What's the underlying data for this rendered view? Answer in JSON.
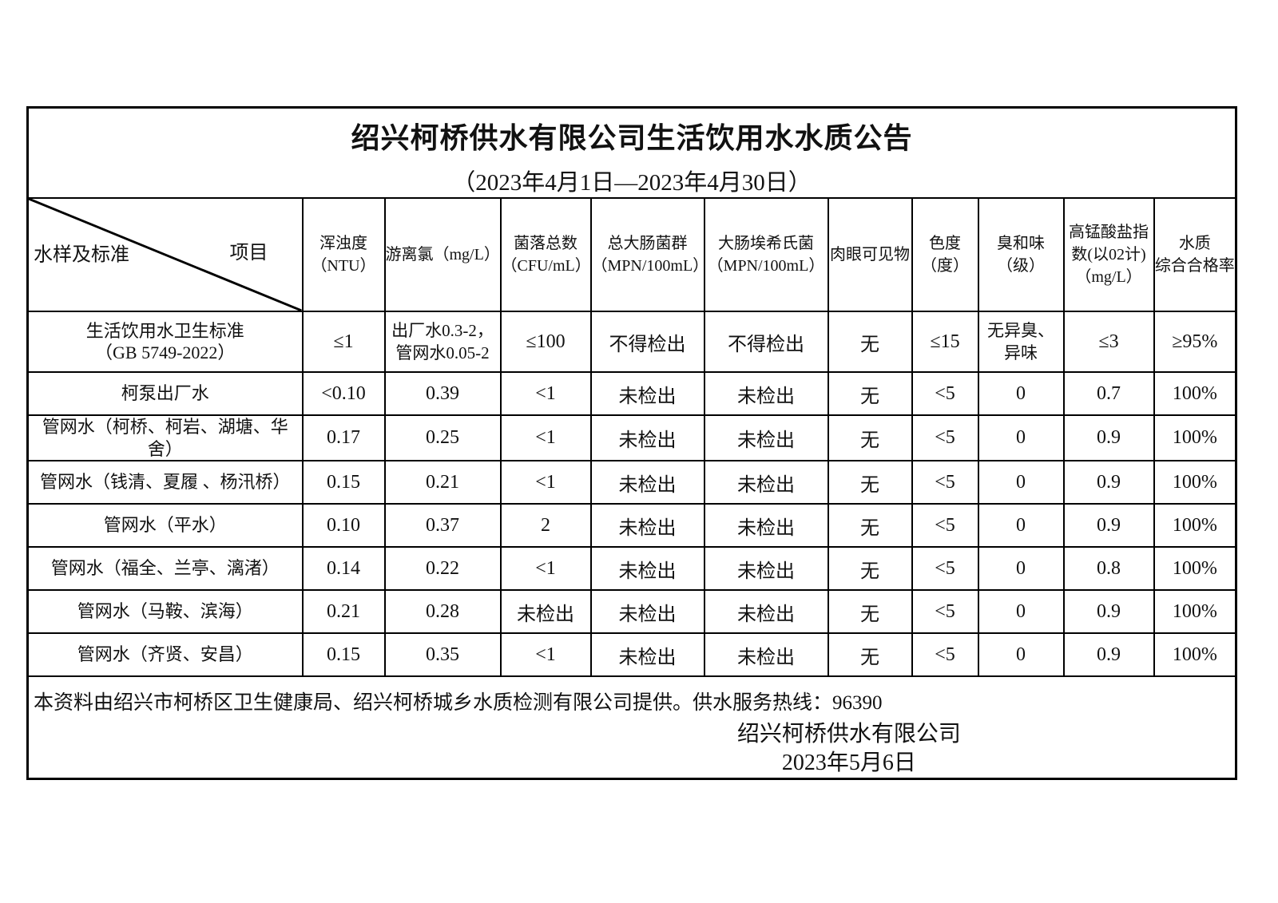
{
  "title": "绍兴柯桥供水有限公司生活饮用水水质公告",
  "subtitle": "（2023年4月1日—2023年4月30日）",
  "corner": {
    "left": "水样及标准",
    "right": "项目"
  },
  "columns": [
    "浑浊度\n（NTU）",
    "游离氯（mg/L）",
    "菌落总数\n（CFU/mL）",
    "总大肠菌群\n（MPN/100mL）",
    "大肠埃希氏菌\n（MPN/100mL）",
    "肉眼可见物",
    "色度\n（度）",
    "臭和味\n（级）",
    "高锰酸盐指\n数(以02计)\n（mg/L）",
    "水质\n综合合格率"
  ],
  "rows": [
    {
      "name": "生活饮用水卫生标准\n（GB 5749-2022）",
      "values": [
        "≤1",
        "出厂水0.3-2，\n管网水0.05-2",
        "≤100",
        "不得检出",
        "不得检出",
        "无",
        "≤15",
        "无异臭、\n异味",
        "≤3",
        "≥95%"
      ]
    },
    {
      "name": "柯泵出厂水",
      "values": [
        "<0.10",
        "0.39",
        "<1",
        "未检出",
        "未检出",
        "无",
        "<5",
        "0",
        "0.7",
        "100%"
      ]
    },
    {
      "name": "管网水（柯桥、柯岩、湖塘、华\n舍）",
      "values": [
        "0.17",
        "0.25",
        "<1",
        "未检出",
        "未检出",
        "无",
        "<5",
        "0",
        "0.9",
        "100%"
      ]
    },
    {
      "name": "管网水（钱清、夏履 、杨汛桥）",
      "values": [
        "0.15",
        "0.21",
        "<1",
        "未检出",
        "未检出",
        "无",
        "<5",
        "0",
        "0.9",
        "100%"
      ]
    },
    {
      "name": "管网水（平水）",
      "values": [
        "0.10",
        "0.37",
        "2",
        "未检出",
        "未检出",
        "无",
        "<5",
        "0",
        "0.9",
        "100%"
      ]
    },
    {
      "name": "管网水（福全、兰亭、漓渚）",
      "values": [
        "0.14",
        "0.22",
        "<1",
        "未检出",
        "未检出",
        "无",
        "<5",
        "0",
        "0.8",
        "100%"
      ]
    },
    {
      "name": "管网水（马鞍、滨海）",
      "values": [
        "0.21",
        "0.28",
        "未检出",
        "未检出",
        "未检出",
        "无",
        "<5",
        "0",
        "0.9",
        "100%"
      ]
    },
    {
      "name": "管网水（齐贤、安昌）",
      "values": [
        "0.15",
        "0.35",
        "<1",
        "未检出",
        "未检出",
        "无",
        "<5",
        "0",
        "0.9",
        "100%"
      ]
    }
  ],
  "footer": {
    "note": "本资料由绍兴市柯桥区卫生健康局、绍兴柯桥城乡水质检测有限公司提供。供水服务热线：96390",
    "company": "绍兴柯桥供水有限公司",
    "date": "2023年5月6日"
  }
}
